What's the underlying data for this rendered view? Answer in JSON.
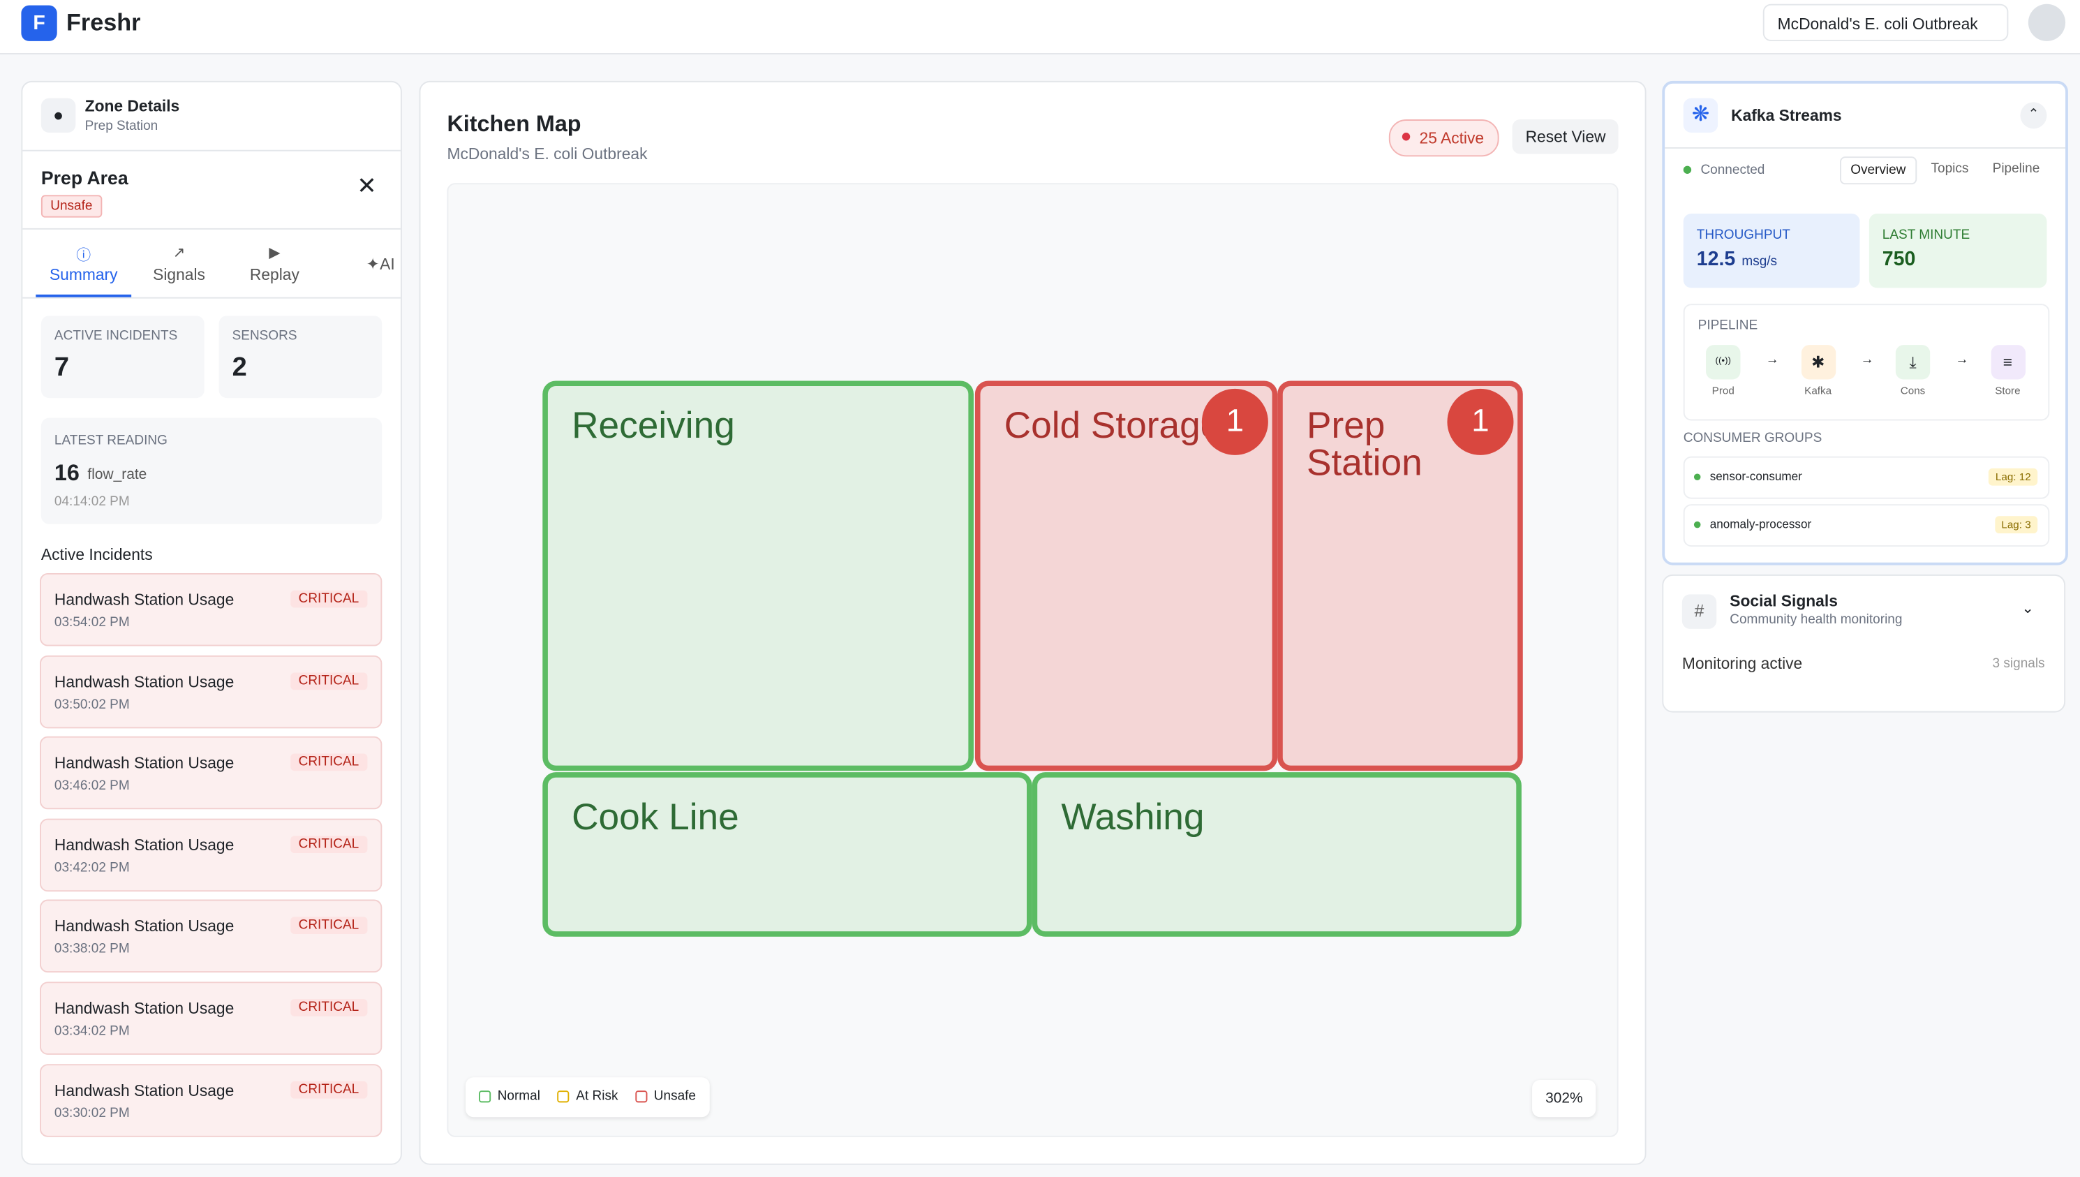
{
  "header": {
    "brand_initial": "F",
    "brand": "Freshr",
    "incident_selector": "McDonald's E. coli Outbreak"
  },
  "zone_panel": {
    "title": "Zone Details",
    "subtitle": "Prep Station",
    "zone_name": "Prep Area",
    "status": "Unsafe",
    "tabs": [
      "Summary",
      "Signals",
      "Replay",
      "AI"
    ],
    "stats": [
      {
        "label": "ACTIVE INCIDENTS",
        "value": 7
      },
      {
        "label": "SENSORS",
        "value": 2
      }
    ],
    "latest_reading": {
      "label": "LATEST READING",
      "value": 16,
      "unit": "flow_rate",
      "time": "04:14:02 PM"
    },
    "incidents_heading": "Active Incidents",
    "incidents": [
      {
        "title": "Handwash Station Usage",
        "severity": "CRITICAL",
        "time": "03:54:02 PM"
      },
      {
        "title": "Handwash Station Usage",
        "severity": "CRITICAL",
        "time": "03:50:02 PM"
      },
      {
        "title": "Handwash Station Usage",
        "severity": "CRITICAL",
        "time": "03:46:02 PM"
      },
      {
        "title": "Handwash Station Usage",
        "severity": "CRITICAL",
        "time": "03:42:02 PM"
      },
      {
        "title": "Handwash Station Usage",
        "severity": "CRITICAL",
        "time": "03:38:02 PM"
      },
      {
        "title": "Handwash Station Usage",
        "severity": "CRITICAL",
        "time": "03:34:02 PM"
      },
      {
        "title": "Handwash Station Usage",
        "severity": "CRITICAL",
        "time": "03:30:02 PM"
      }
    ]
  },
  "map": {
    "title": "Kitchen Map",
    "subtitle": "McDonald's E. coli Outbreak",
    "active_badge": "25 Active",
    "reset": "Reset View",
    "zones": [
      {
        "name": "Receiving",
        "color": "green"
      },
      {
        "name": "Cold Storage",
        "color": "red",
        "count": 1
      },
      {
        "name": "Prep Station",
        "color": "red",
        "count": 1
      },
      {
        "name": "Cook Line",
        "color": "green"
      },
      {
        "name": "Washing",
        "color": "green"
      }
    ],
    "legend": [
      "Normal",
      "At Risk",
      "Unsafe"
    ],
    "zoom": "302%"
  },
  "kafka": {
    "title": "Kafka Streams",
    "status": "Connected",
    "tabs": [
      "Overview",
      "Topics",
      "Pipeline"
    ],
    "throughput": {
      "label": "THROUGHPUT",
      "value": 12.5,
      "unit": "msg/s"
    },
    "last_minute": {
      "label": "LAST MINUTE",
      "value": 750
    },
    "pipeline_label": "PIPELINE",
    "steps": [
      "Prod",
      "Kafka",
      "Cons",
      "Store"
    ],
    "consumer_groups_label": "CONSUMER GROUPS",
    "groups": [
      {
        "name": "sensor-consumer",
        "lag": "Lag: 12"
      },
      {
        "name": "anomaly-processor",
        "lag": "Lag: 3"
      }
    ]
  },
  "social": {
    "title": "Social Signals",
    "subtitle": "Community health monitoring",
    "status": "Monitoring active",
    "count": "3 signals"
  }
}
